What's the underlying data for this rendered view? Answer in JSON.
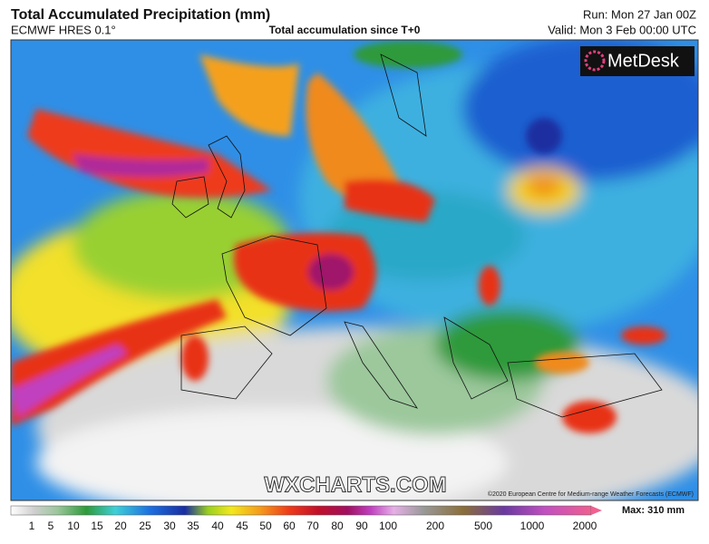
{
  "header": {
    "title": "Total Accumulated Precipitation (mm)",
    "model": "ECMWF HRES 0.1°",
    "subtitle": "Total accumulation since T+0",
    "run": "Run: Mon 27 Jan 00Z",
    "valid": "Valid: Mon 3 Feb 00:00 UTC"
  },
  "logo": "MetDesk",
  "watermark": "WXCHARTS.COM",
  "copyright": "©2020 European Centre for Medium-range Weather Forecasts (ECMWF)",
  "legend": {
    "labels": [
      "1",
      "5",
      "10",
      "15",
      "20",
      "25",
      "30",
      "35",
      "40",
      "45",
      "50",
      "60",
      "70",
      "80",
      "90",
      "100",
      "200",
      "500",
      "1000",
      "2000"
    ],
    "max": "Max: 310 mm"
  }
}
